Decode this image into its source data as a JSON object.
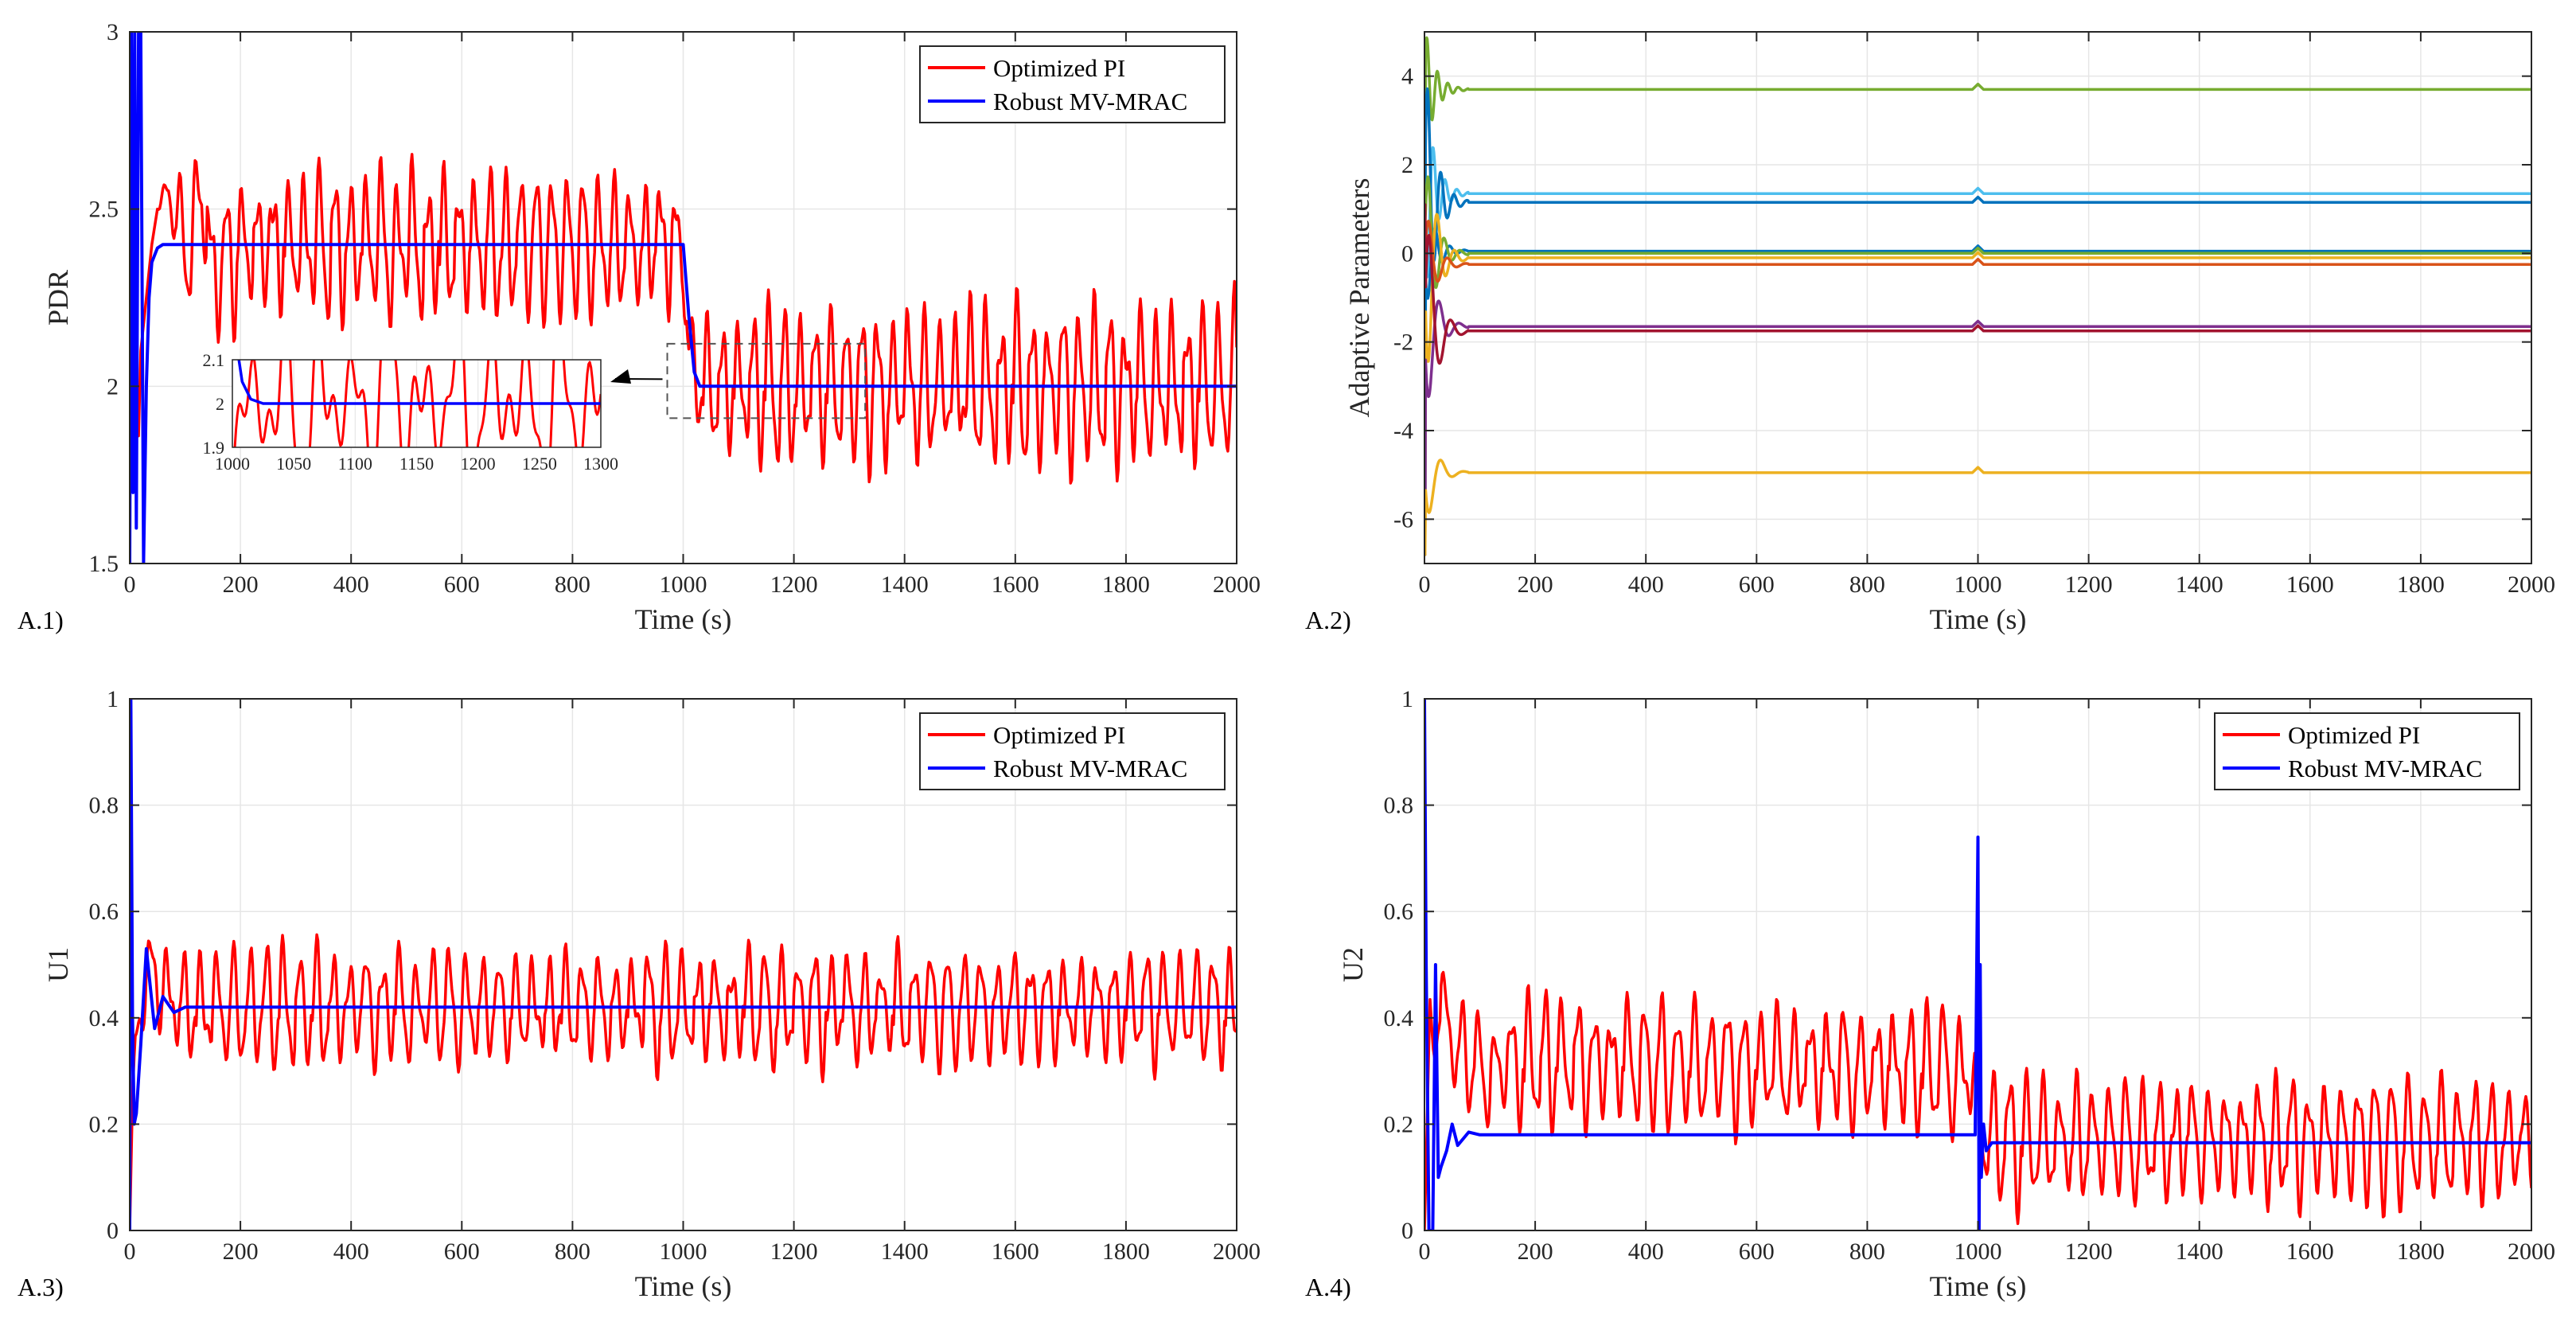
{
  "figure": {
    "panels": [
      "A.1)",
      "A.2)",
      "A.3)",
      "A.4)"
    ]
  },
  "legend": {
    "pi": "Optimized PI",
    "mrac": "Robust MV-MRAC"
  },
  "colors": {
    "pi": "#ff0000",
    "mrac": "#0000ff",
    "grid": "#e6e6e6",
    "axis": "#262626"
  },
  "chart_data": [
    {
      "id": "A.1",
      "type": "line",
      "xlabel": "Time (s)",
      "ylabel": "PDR",
      "xlim": [
        0,
        2000
      ],
      "ylim": [
        1.5,
        3
      ],
      "xticks": [
        0,
        200,
        400,
        600,
        800,
        1000,
        1200,
        1400,
        1600,
        1800,
        2000
      ],
      "yticks": [
        1.5,
        2,
        2.5,
        3
      ],
      "legend": "top-right",
      "grid": true,
      "series": [
        {
          "name": "Optimized PI",
          "color": "#ff0000",
          "x": [
            0,
            5,
            10,
            15,
            20,
            30,
            40,
            50,
            70,
            90,
            110,
            130,
            150,
            200,
            300,
            400,
            500,
            600,
            700,
            800,
            900,
            990,
            1000,
            1010,
            1030,
            1100,
            1200,
            1300,
            1400,
            1500,
            1600,
            1700,
            1800,
            1900,
            2000
          ],
          "y": [
            2.6,
            3.0,
            2.2,
            1.8,
            2.1,
            2.25,
            2.4,
            2.5,
            2.55,
            2.45,
            2.35,
            2.6,
            2.3,
            2.4,
            2.4,
            2.4,
            2.4,
            2.4,
            2.4,
            2.4,
            2.4,
            2.4,
            2.35,
            2.1,
            2.0,
            2.0,
            2.0,
            2.0,
            2.0,
            2.0,
            2.0,
            2.0,
            2.0,
            2.0,
            2.0
          ],
          "amplitude": [
            0,
            0,
            0,
            0,
            0,
            0,
            0,
            0,
            0.1,
            0.15,
            0.17,
            0.18,
            0.2,
            0.22,
            0.22,
            0.22,
            0.22,
            0.22,
            0.22,
            0.22,
            0.22,
            0.2,
            0.1,
            0.15,
            0.2,
            0.22,
            0.23,
            0.24,
            0.24,
            0.24,
            0.24,
            0.24,
            0.24,
            0.24,
            0.24
          ],
          "period": 28
        },
        {
          "name": "Robust MV-MRAC",
          "color": "#0000ff",
          "x": [
            0,
            3,
            6,
            9,
            12,
            16,
            20,
            25,
            30,
            35,
            40,
            50,
            60,
            1000,
            1010,
            1020,
            1030,
            2000
          ],
          "y": [
            1.5,
            3.0,
            1.7,
            3.0,
            1.6,
            3.0,
            3.0,
            1.5,
            2.0,
            2.25,
            2.35,
            2.39,
            2.4,
            2.4,
            2.2,
            2.04,
            2.0,
            2.0
          ]
        }
      ],
      "inset": {
        "xlim": [
          1000,
          1300
        ],
        "ylim": [
          1.9,
          2.1
        ],
        "xticks": [
          1000,
          1050,
          1100,
          1150,
          1200,
          1250,
          1300
        ],
        "yticks": [
          1.9,
          2,
          2.1
        ]
      }
    },
    {
      "id": "A.2",
      "type": "line",
      "xlabel": "Time (s)",
      "ylabel": "Adaptive Parameters",
      "xlim": [
        0,
        2000
      ],
      "ylim": [
        -7,
        5
      ],
      "xticks": [
        0,
        200,
        400,
        600,
        800,
        1000,
        1200,
        1400,
        1600,
        1800,
        2000
      ],
      "yticks": [
        -6,
        -4,
        -2,
        0,
        2,
        4
      ],
      "grid": true,
      "series": [
        {
          "color": "#77ac30",
          "final": 3.7
        },
        {
          "color": "#4dbeee",
          "final": 1.35
        },
        {
          "color": "#0072bd",
          "final": 1.15
        },
        {
          "color": "#0072bd",
          "final": 0.05
        },
        {
          "color": "#77ac30",
          "final": 0.0
        },
        {
          "color": "#edb120",
          "final": -0.1
        },
        {
          "color": "#d95319",
          "final": -0.25
        },
        {
          "color": "#7e2f8e",
          "final": -1.65
        },
        {
          "color": "#a2142f",
          "final": -1.75
        },
        {
          "color": "#edb120",
          "final": -4.95
        }
      ]
    },
    {
      "id": "A.3",
      "type": "line",
      "xlabel": "Time (s)",
      "ylabel": "U1",
      "xlim": [
        0,
        2000
      ],
      "ylim": [
        0,
        1
      ],
      "xticks": [
        0,
        200,
        400,
        600,
        800,
        1000,
        1200,
        1400,
        1600,
        1800,
        2000
      ],
      "yticks": [
        0,
        0.2,
        0.4,
        0.6,
        0.8,
        1
      ],
      "legend": "top-right",
      "grid": true,
      "series": [
        {
          "name": "Optimized PI",
          "color": "#ff0000",
          "x": [
            0,
            5,
            10,
            20,
            30,
            40,
            60,
            100,
            200,
            2000
          ],
          "y": [
            0,
            0.25,
            0.35,
            0.42,
            0.47,
            0.5,
            0.45,
            0.42,
            0.42,
            0.42
          ],
          "amplitude": [
            0,
            0,
            0.05,
            0.08,
            0.08,
            0.08,
            0.1,
            0.11,
            0.11,
            0.11
          ],
          "period": 30
        },
        {
          "name": "Robust MV-MRAC",
          "color": "#0000ff",
          "x": [
            0,
            2,
            5,
            8,
            12,
            20,
            30,
            45,
            60,
            80,
            100,
            2000
          ],
          "y": [
            0,
            1.0,
            0.4,
            0.2,
            0.22,
            0.35,
            0.53,
            0.38,
            0.44,
            0.41,
            0.42,
            0.42
          ]
        }
      ]
    },
    {
      "id": "A.4",
      "type": "line",
      "xlabel": "Time (s)",
      "ylabel": "U2",
      "xlim": [
        0,
        2000
      ],
      "ylim": [
        0,
        1
      ],
      "xticks": [
        0,
        200,
        400,
        600,
        800,
        1000,
        1200,
        1400,
        1600,
        1800,
        2000
      ],
      "yticks": [
        0,
        0.2,
        0.4,
        0.6,
        0.8,
        1
      ],
      "legend": "top-right",
      "grid": true,
      "series": [
        {
          "name": "Optimized PI",
          "color": "#ff0000",
          "x": [
            0,
            10,
            20,
            30,
            50,
            100,
            200,
            990,
            1000,
            1010,
            2000
          ],
          "y": [
            0,
            0.4,
            0.35,
            0.45,
            0.35,
            0.3,
            0.32,
            0.3,
            0.25,
            0.17,
            0.17
          ],
          "amplitude": [
            0,
            0.05,
            0.08,
            0.08,
            0.09,
            0.1,
            0.12,
            0.12,
            0.05,
            0.12,
            0.12
          ],
          "period": 30
        },
        {
          "name": "Robust MV-MRAC",
          "color": "#0000ff",
          "x": [
            0,
            3,
            8,
            15,
            20,
            25,
            30,
            40,
            50,
            60,
            80,
            100,
            995,
            1000,
            1002,
            1004,
            1006,
            1010,
            1015,
            1025,
            2000
          ],
          "y": [
            1.0,
            0.5,
            0.0,
            0.0,
            0.5,
            0.1,
            0.12,
            0.15,
            0.2,
            0.16,
            0.185,
            0.18,
            0.18,
            0.74,
            0.0,
            0.5,
            0.1,
            0.2,
            0.15,
            0.165,
            0.165
          ]
        }
      ]
    }
  ]
}
